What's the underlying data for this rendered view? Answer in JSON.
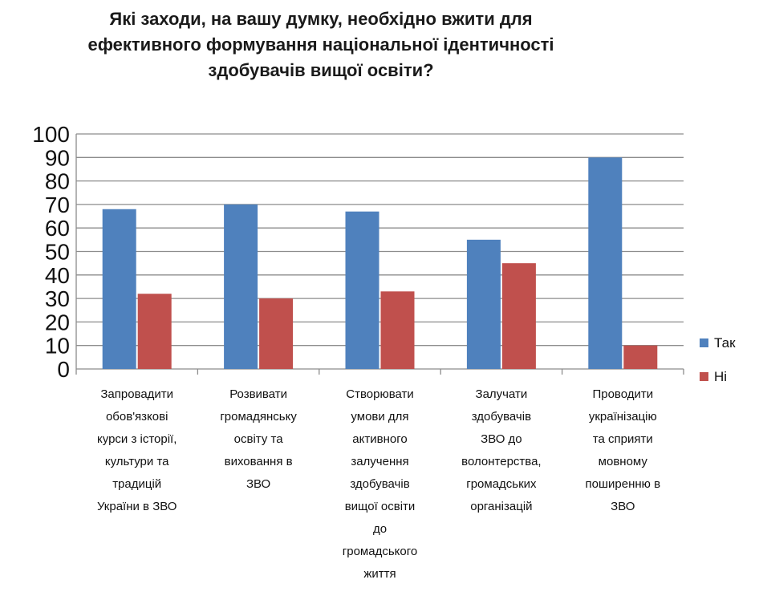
{
  "chart_data": {
    "type": "bar",
    "title_lines": [
      "Які заходи, на вашу думку, необхідно вжити для",
      "ефективного формування національної ідентичності",
      "здобувачів вищої освіти?"
    ],
    "categories": [
      [
        "Запровадити",
        "обов'язкові",
        "курси з історії,",
        "культури та",
        "традицій",
        "України в ЗВО"
      ],
      [
        "Розвивати",
        "громадянську",
        "освіту та",
        "виховання в",
        "ЗВО"
      ],
      [
        "Створювати",
        "умови для",
        "активного",
        "залучення",
        "здобувачів",
        "вищої освіти",
        "до",
        "громадського",
        "життя"
      ],
      [
        "Залучати",
        "здобувачів",
        "ЗВО до",
        "волонтерства,",
        "громадських",
        "організацій"
      ],
      [
        "Проводити",
        "українізацію",
        "та сприяти",
        "мовному",
        "поширенню в",
        "ЗВО"
      ]
    ],
    "series": [
      {
        "name": "Так",
        "color": "#4f81bd",
        "values": [
          68,
          70,
          67,
          55,
          90
        ]
      },
      {
        "name": "Ні",
        "color": "#c0504d",
        "values": [
          32,
          30,
          33,
          45,
          10
        ]
      }
    ],
    "ylim": [
      0,
      100
    ],
    "yticks": [
      "0",
      "10",
      "20",
      "30",
      "40",
      "50",
      "60",
      "70",
      "80",
      "90",
      "100"
    ],
    "grid": true,
    "legend_position": "right"
  }
}
